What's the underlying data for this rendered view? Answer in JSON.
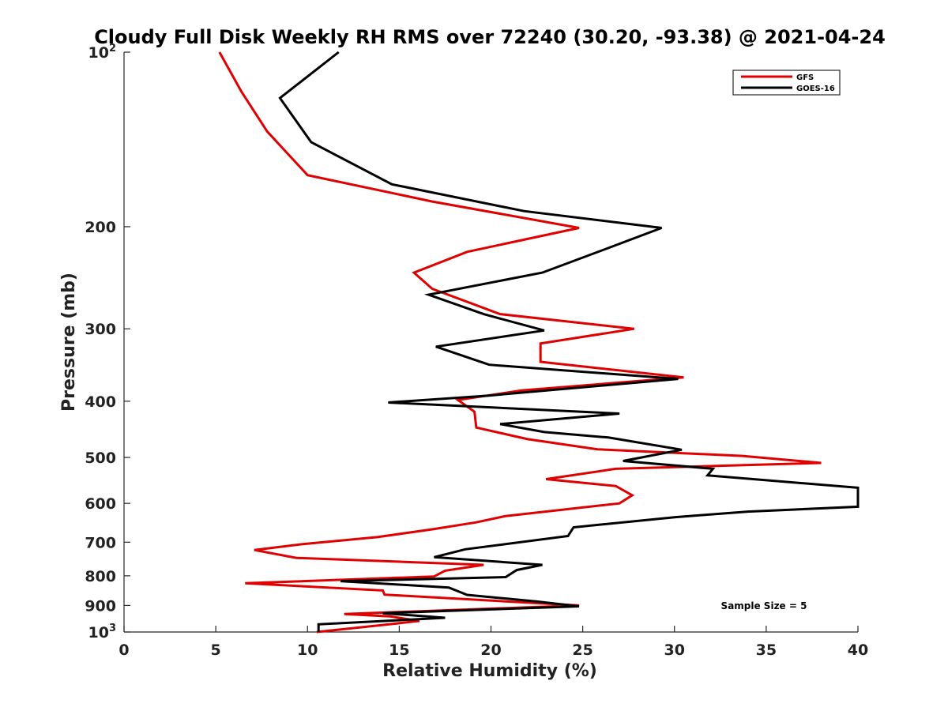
{
  "chart_data": {
    "type": "line",
    "title": "Cloudy Full Disk Weekly RH RMS over 72240 (30.20, -93.38) @ 2021-04-24",
    "xlabel": "Relative Humidity (%)",
    "ylabel": "Pressure (mb)",
    "xlim": [
      0,
      40
    ],
    "ylim": [
      100,
      1000
    ],
    "yscale": "log-reversed",
    "xticks": [
      {
        "value": 0,
        "label": "0"
      },
      {
        "value": 5,
        "label": "5"
      },
      {
        "value": 10,
        "label": "10"
      },
      {
        "value": 15,
        "label": "15"
      },
      {
        "value": 20,
        "label": "20"
      },
      {
        "value": 25,
        "label": "25"
      },
      {
        "value": 30,
        "label": "30"
      },
      {
        "value": 35,
        "label": "35"
      },
      {
        "value": 40,
        "label": "40"
      }
    ],
    "yticks": [
      {
        "value": 100,
        "base": "10",
        "exp": "2"
      },
      {
        "value": 200,
        "base": "200",
        "exp": ""
      },
      {
        "value": 300,
        "base": "300",
        "exp": ""
      },
      {
        "value": 400,
        "base": "400",
        "exp": ""
      },
      {
        "value": 500,
        "base": "500",
        "exp": ""
      },
      {
        "value": 600,
        "base": "600",
        "exp": ""
      },
      {
        "value": 700,
        "base": "700",
        "exp": ""
      },
      {
        "value": 800,
        "base": "800",
        "exp": ""
      },
      {
        "value": 900,
        "base": "900",
        "exp": ""
      },
      {
        "value": 1000,
        "base": "10",
        "exp": "3"
      }
    ],
    "legend_position": "top-right",
    "annotation": "Sample Size = 5",
    "series": [
      {
        "name": "GFS",
        "color": "#e00000",
        "points": [
          [
            5.2,
            100
          ],
          [
            6.4,
            117
          ],
          [
            7.8,
            137
          ],
          [
            10.0,
            163
          ],
          [
            16.8,
            181
          ],
          [
            24.8,
            201
          ],
          [
            18.7,
            221
          ],
          [
            15.8,
            240
          ],
          [
            16.8,
            256
          ],
          [
            20.5,
            283
          ],
          [
            27.8,
            300
          ],
          [
            22.7,
            318
          ],
          [
            22.7,
            342
          ],
          [
            30.5,
            364
          ],
          [
            21.7,
            383
          ],
          [
            18.2,
            398
          ],
          [
            19.1,
            417
          ],
          [
            19.2,
            444
          ],
          [
            22.0,
            465
          ],
          [
            25.8,
            484
          ],
          [
            33.7,
            497
          ],
          [
            38.0,
            511
          ],
          [
            26.8,
            523
          ],
          [
            23.0,
            545
          ],
          [
            26.8,
            560
          ],
          [
            27.7,
            581
          ],
          [
            27.0,
            600
          ],
          [
            20.8,
            631
          ],
          [
            19.2,
            647
          ],
          [
            16.8,
            665
          ],
          [
            13.8,
            686
          ],
          [
            9.8,
            705
          ],
          [
            7.1,
            722
          ],
          [
            9.4,
            745
          ],
          [
            19.6,
            766
          ],
          [
            17.5,
            784
          ],
          [
            16.9,
            802
          ],
          [
            6.6,
            824
          ],
          [
            14.1,
            848
          ],
          [
            14.2,
            862
          ],
          [
            24.8,
            900
          ],
          [
            12.0,
            931
          ],
          [
            14.5,
            940
          ],
          [
            16.1,
            957
          ],
          [
            14.2,
            972
          ],
          [
            10.5,
            1000
          ]
        ]
      },
      {
        "name": "GOES-16",
        "color": "#000000",
        "points": [
          [
            11.7,
            100
          ],
          [
            8.5,
            120
          ],
          [
            10.2,
            143
          ],
          [
            14.6,
            169
          ],
          [
            21.8,
            188
          ],
          [
            29.3,
            201
          ],
          [
            26.5,
            217
          ],
          [
            22.8,
            240
          ],
          [
            16.6,
            262
          ],
          [
            19.6,
            283
          ],
          [
            22.9,
            302
          ],
          [
            17.0,
            322
          ],
          [
            19.9,
            346
          ],
          [
            30.2,
            366
          ],
          [
            19.9,
            391
          ],
          [
            14.4,
            402
          ],
          [
            27.0,
            420
          ],
          [
            20.5,
            438
          ],
          [
            22.9,
            452
          ],
          [
            26.4,
            462
          ],
          [
            30.4,
            485
          ],
          [
            27.2,
            507
          ],
          [
            32.1,
            523
          ],
          [
            31.8,
            537
          ],
          [
            40.0,
            564
          ],
          [
            40.0,
            608
          ],
          [
            34.0,
            620
          ],
          [
            30.0,
            634
          ],
          [
            24.5,
            660
          ],
          [
            24.2,
            683
          ],
          [
            18.6,
            720
          ],
          [
            16.9,
            743
          ],
          [
            22.8,
            766
          ],
          [
            21.4,
            782
          ],
          [
            20.8,
            804
          ],
          [
            11.8,
            817
          ],
          [
            17.7,
            838
          ],
          [
            18.7,
            863
          ],
          [
            22.5,
            886
          ],
          [
            24.8,
            903
          ],
          [
            14.1,
            928
          ],
          [
            17.5,
            945
          ],
          [
            10.6,
            970
          ],
          [
            10.6,
            1000
          ]
        ]
      }
    ]
  }
}
